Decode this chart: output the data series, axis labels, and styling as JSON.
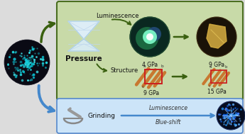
{
  "bg_color": "#dcdcdc",
  "green_box_color": "#c8daa8",
  "green_box_edge": "#4a6e20",
  "blue_box_color": "#cce4f8",
  "blue_box_edge": "#5588cc",
  "arrow_green": "#3a6010",
  "arrow_blue": "#4488cc",
  "rod_color": "#c87830",
  "rect_color": "#cc2020",
  "text_color": "#111111",
  "label_luminescence": "Luminescence",
  "label_pressure": "Pressure",
  "label_structure": "Structure",
  "label_4gpa": "4 GPa",
  "label_9gpa_top": "9 GPa",
  "label_9gpa_bot": "9 GPa",
  "label_15gpa": "15 GPa",
  "label_grinding": "Grinding",
  "label_lum_grind": "Luminescence",
  "label_blueshift": "Blue-shift"
}
